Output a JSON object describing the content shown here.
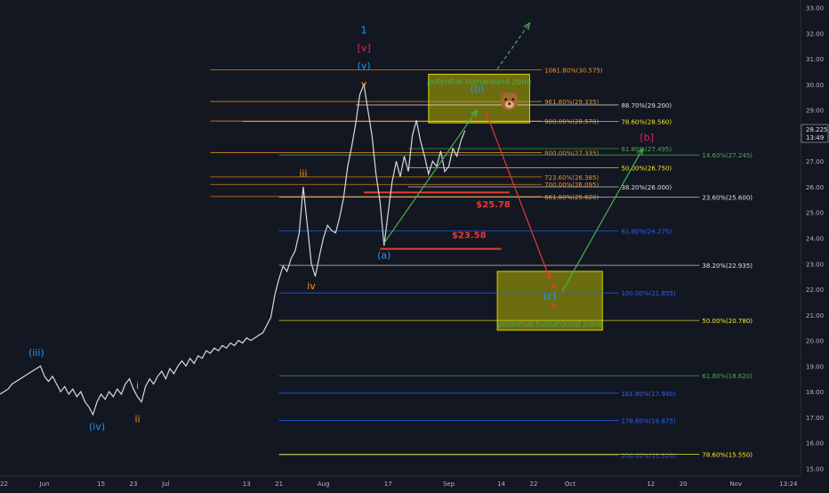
{
  "chart_data": {
    "type": "line",
    "title": "",
    "background": "#131722",
    "ylim": [
      14.7,
      33.3
    ],
    "y_ticks": [
      15,
      16,
      17,
      18,
      19,
      20,
      21,
      22,
      23,
      24,
      25,
      26,
      27,
      28,
      29,
      30,
      31,
      32,
      33
    ],
    "x_ticks": [
      {
        "label": "22",
        "x": -7
      },
      {
        "label": "Jun",
        "x": 3
      },
      {
        "label": "15",
        "x": 17
      },
      {
        "label": "23",
        "x": 25
      },
      {
        "label": "Jul",
        "x": 33
      },
      {
        "label": "13",
        "x": 53
      },
      {
        "label": "21",
        "x": 61
      },
      {
        "label": "Aug",
        "x": 72
      },
      {
        "label": "17",
        "x": 88
      },
      {
        "label": "Sep",
        "x": 103
      },
      {
        "label": "14",
        "x": 116
      },
      {
        "label": "22",
        "x": 124
      },
      {
        "label": "Oct",
        "x": 133
      },
      {
        "label": "12",
        "x": 153
      },
      {
        "label": "20",
        "x": 161
      },
      {
        "label": "Nov",
        "x": 174
      },
      {
        "label": "13:24",
        "x": 187
      }
    ],
    "x_range": [
      -8,
      190
    ],
    "last_price": {
      "value": "28.225",
      "time": "13:49",
      "price": 28.225
    },
    "series": [
      {
        "color": "#d9d9d9",
        "values": [
          [
            -8,
            17.9
          ],
          [
            -6,
            18.1
          ],
          [
            -5,
            18.3
          ],
          [
            -3,
            18.5
          ],
          [
            -1,
            18.7
          ],
          [
            1,
            18.9
          ],
          [
            2,
            19.0
          ],
          [
            3,
            18.6
          ],
          [
            4,
            18.4
          ],
          [
            5,
            18.6
          ],
          [
            6,
            18.3
          ],
          [
            7,
            18.0
          ],
          [
            8,
            18.2
          ],
          [
            9,
            17.9
          ],
          [
            10,
            18.1
          ],
          [
            11,
            17.8
          ],
          [
            12,
            18.0
          ],
          [
            13,
            17.6
          ],
          [
            14,
            17.4
          ],
          [
            15,
            17.1
          ],
          [
            16,
            17.6
          ],
          [
            17,
            17.9
          ],
          [
            18,
            17.7
          ],
          [
            19,
            18.0
          ],
          [
            20,
            17.8
          ],
          [
            21,
            18.1
          ],
          [
            22,
            17.9
          ],
          [
            23,
            18.3
          ],
          [
            24,
            18.5
          ],
          [
            25,
            18.1
          ],
          [
            26,
            17.8
          ],
          [
            27,
            17.6
          ],
          [
            28,
            18.2
          ],
          [
            29,
            18.5
          ],
          [
            30,
            18.3
          ],
          [
            31,
            18.6
          ],
          [
            32,
            18.8
          ],
          [
            33,
            18.5
          ],
          [
            34,
            18.9
          ],
          [
            35,
            18.7
          ],
          [
            36,
            19.0
          ],
          [
            37,
            19.2
          ],
          [
            38,
            19.0
          ],
          [
            39,
            19.3
          ],
          [
            40,
            19.1
          ],
          [
            41,
            19.4
          ],
          [
            42,
            19.3
          ],
          [
            43,
            19.6
          ],
          [
            44,
            19.5
          ],
          [
            45,
            19.7
          ],
          [
            46,
            19.6
          ],
          [
            47,
            19.8
          ],
          [
            48,
            19.7
          ],
          [
            49,
            19.9
          ],
          [
            50,
            19.8
          ],
          [
            51,
            20.0
          ],
          [
            52,
            19.9
          ],
          [
            53,
            20.1
          ],
          [
            54,
            20.0
          ],
          [
            55,
            20.1
          ],
          [
            56,
            20.2
          ],
          [
            57,
            20.3
          ],
          [
            58,
            20.6
          ],
          [
            59,
            20.9
          ],
          [
            60,
            21.8
          ],
          [
            61,
            22.4
          ],
          [
            62,
            22.9
          ],
          [
            63,
            22.7
          ],
          [
            64,
            23.2
          ],
          [
            65,
            23.5
          ],
          [
            66,
            24.2
          ],
          [
            67,
            26.0
          ],
          [
            68,
            24.5
          ],
          [
            69,
            23.0
          ],
          [
            70,
            22.5
          ],
          [
            71,
            23.3
          ],
          [
            72,
            24.0
          ],
          [
            73,
            24.5
          ],
          [
            74,
            24.3
          ],
          [
            75,
            24.2
          ],
          [
            76,
            24.8
          ],
          [
            77,
            25.6
          ],
          [
            78,
            26.8
          ],
          [
            79,
            27.6
          ],
          [
            80,
            28.5
          ],
          [
            81,
            29.6
          ],
          [
            82,
            30.0
          ],
          [
            83,
            29.0
          ],
          [
            84,
            28.0
          ],
          [
            85,
            26.5
          ],
          [
            86,
            25.4
          ],
          [
            87,
            23.7
          ],
          [
            88,
            25.0
          ],
          [
            89,
            26.2
          ],
          [
            90,
            27.0
          ],
          [
            91,
            26.4
          ],
          [
            92,
            27.2
          ],
          [
            93,
            26.6
          ],
          [
            94,
            28.0
          ],
          [
            95,
            28.6
          ],
          [
            96,
            27.8
          ],
          [
            97,
            27.2
          ],
          [
            98,
            26.5
          ],
          [
            99,
            27.0
          ],
          [
            100,
            26.8
          ],
          [
            101,
            27.4
          ],
          [
            102,
            26.6
          ],
          [
            103,
            26.8
          ],
          [
            104,
            27.5
          ],
          [
            105,
            27.2
          ],
          [
            106,
            27.8
          ],
          [
            107,
            28.2
          ]
        ]
      }
    ],
    "fib_levels": [
      {
        "label": "1061.80%(30.575)",
        "value": 30.575,
        "color": "#f7931a",
        "x0": 44,
        "x1": 126
      },
      {
        "label": "961.80%(29.335)",
        "value": 29.335,
        "color": "#f7931a",
        "x0": 44,
        "x1": 126
      },
      {
        "label": "88.70%(29.200)",
        "value": 29.2,
        "color": "#e0e0e0",
        "x0": 80,
        "x1": 145
      },
      {
        "label": "900.00%(28.570)",
        "value": 28.57,
        "color": "#f7931a",
        "x0": 44,
        "x1": 126
      },
      {
        "label": "78.60%(28.560)",
        "value": 28.56,
        "color": "#f4ea24",
        "x0": 52,
        "x1": 145
      },
      {
        "label": "800.00%(27.335)",
        "value": 27.335,
        "color": "#f7931a",
        "x0": 44,
        "x1": 126
      },
      {
        "label": "61.80%(27.495)",
        "value": 27.495,
        "color": "#4caf50",
        "x0": 93,
        "x1": 145
      },
      {
        "label": "14.60%(27.245)",
        "value": 27.245,
        "color": "#4caf50",
        "x0": 61,
        "x1": 165
      },
      {
        "label": "50.00%(26.750)",
        "value": 26.75,
        "color": "#f4ea24",
        "x0": 93,
        "x1": 145
      },
      {
        "label": "723.60%(26.385)",
        "value": 26.385,
        "color": "#f7931a",
        "x0": 44,
        "x1": 126
      },
      {
        "label": "700.00%(26.095)",
        "value": 26.095,
        "color": "#f7931a",
        "x0": 44,
        "x1": 126
      },
      {
        "label": "38.20%(26.000)",
        "value": 26.0,
        "color": "#e0e0e0",
        "x0": 93,
        "x1": 145
      },
      {
        "label": "661.80%(25.620)",
        "value": 25.62,
        "color": "#f7931a",
        "x0": 44,
        "x1": 126
      },
      {
        "label": "23.60%(25.600)",
        "value": 25.6,
        "color": "#e0e0e0",
        "x0": 61,
        "x1": 165
      },
      {
        "label": "61.80%(24.275)",
        "value": 24.275,
        "color": "#2962ff",
        "x0": 61,
        "x1": 145
      },
      {
        "label": "38.20%(22.935)",
        "value": 22.935,
        "color": "#e0e0e0",
        "x0": 61,
        "x1": 165
      },
      {
        "label": "100.00%(21.855)",
        "value": 21.855,
        "color": "#2962ff",
        "x0": 61,
        "x1": 145
      },
      {
        "label": "50.00%(20.780)",
        "value": 20.78,
        "color": "#f4ea24",
        "x0": 61,
        "x1": 165
      },
      {
        "label": "61.80%(18.620)",
        "value": 18.62,
        "color": "#4caf50",
        "x0": 61,
        "x1": 165
      },
      {
        "label": "161.80%(17.940)",
        "value": 17.94,
        "color": "#2962ff",
        "x0": 61,
        "x1": 145
      },
      {
        "label": "178.60%(16.875)",
        "value": 16.875,
        "color": "#2962ff",
        "x0": 61,
        "x1": 145
      },
      {
        "label": "200.00%(15.520)",
        "value": 15.52,
        "color": "#2962ff",
        "x0": 61,
        "x1": 145
      },
      {
        "label": "78.60%(15.550)",
        "value": 15.55,
        "color": "#f4ea24",
        "x0": 61,
        "x1": 165
      }
    ],
    "support_lines": [
      {
        "value": 25.78,
        "x0": 82,
        "x1": 118,
        "color": "#e53935"
      },
      {
        "value": 23.58,
        "x0": 86,
        "x1": 116,
        "color": "#e53935"
      }
    ],
    "annotations": [
      {
        "text": "$25.78",
        "x": 114,
        "y": 25.2,
        "color": "#e53935"
      },
      {
        "text": "$23.58",
        "x": 108,
        "y": 24.0,
        "color": "#e53935"
      },
      {
        "text": "1",
        "x": 82,
        "y": 32.0,
        "color": "#2196f3"
      },
      {
        "text": "[v]",
        "x": 82,
        "y": 31.3,
        "color": "#e91e63"
      },
      {
        "text": "(v)",
        "x": 82,
        "y": 30.6,
        "color": "#2196f3"
      },
      {
        "text": "v",
        "x": 82,
        "y": 29.9,
        "color": "#f7931a"
      },
      {
        "text": "iii",
        "x": 67,
        "y": 26.4,
        "color": "#f7931a"
      },
      {
        "text": "iv",
        "x": 69,
        "y": 22.0,
        "color": "#f7931a"
      },
      {
        "text": "(a)",
        "x": 87,
        "y": 23.2,
        "color": "#2196f3"
      },
      {
        "text": "(b)",
        "x": 110,
        "y": 29.7,
        "color": "#2196f3"
      },
      {
        "text": "(c)",
        "x": 128,
        "y": 21.6,
        "color": "#2196f3"
      },
      {
        "text": "[b]",
        "x": 152,
        "y": 27.8,
        "color": "#e91e63"
      },
      {
        "text": "(iii)",
        "x": 1,
        "y": 19.4,
        "color": "#2196f3"
      },
      {
        "text": "(iv)",
        "x": 16,
        "y": 16.5,
        "color": "#2196f3"
      },
      {
        "text": "i",
        "x": 26,
        "y": 18.1,
        "color": "#f7931a"
      },
      {
        "text": "ii",
        "x": 26,
        "y": 16.8,
        "color": "#f7931a"
      }
    ],
    "zones": [
      {
        "label": "potential turnaround zone",
        "x0": 98,
        "x1": 123,
        "y0": 28.5,
        "y1": 30.4,
        "color": "#b5b500"
      },
      {
        "label": "potential turnaround zone",
        "x0": 115,
        "x1": 141,
        "y0": 20.4,
        "y1": 22.7,
        "color": "#b5b500"
      }
    ],
    "arrows": [
      {
        "from": [
          87,
          23.8
        ],
        "to": [
          110,
          29.0
        ],
        "color": "#4caf50",
        "dashed": false
      },
      {
        "from": [
          112,
          29.0
        ],
        "to": [
          128,
          22.4
        ],
        "color": "#e53935",
        "dashed": false
      },
      {
        "from": [
          131,
          21.9
        ],
        "to": [
          151,
          27.5
        ],
        "color": "#4caf50",
        "dashed": false
      },
      {
        "from": [
          115,
          30.6
        ],
        "to": [
          123,
          32.4
        ],
        "color": "#4caf50",
        "dashed": true
      }
    ],
    "markers": [
      {
        "text": "×",
        "x": 129,
        "y": 22.0,
        "color": "#e53935"
      },
      {
        "text": "×",
        "x": 129,
        "y": 21.2,
        "color": "#e53935"
      }
    ],
    "bear_marker": {
      "icon": "bear-icon",
      "x": 118,
      "y": 29.35
    }
  }
}
